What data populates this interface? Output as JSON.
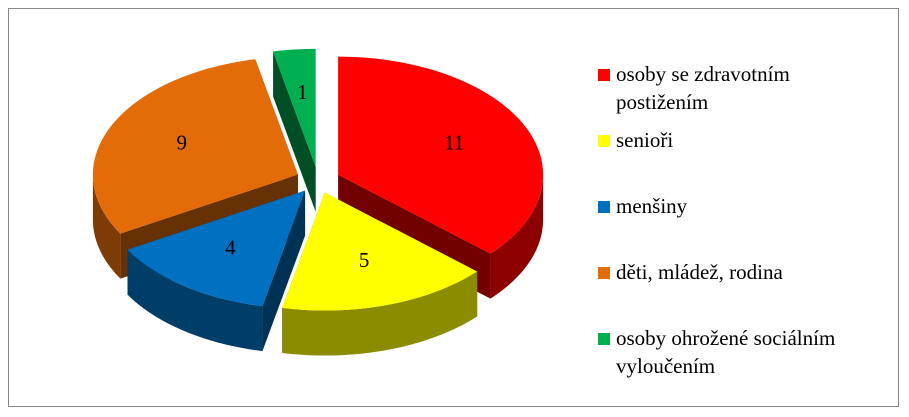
{
  "chart_data": {
    "type": "pie3d",
    "categories": [
      "osoby se zdravotním postižením",
      "senioři",
      "menšiny",
      "děti, mládež, rodina",
      "osoby ohrožené sociálním vyloučením"
    ],
    "values": [
      11,
      5,
      4,
      9,
      1
    ],
    "colors": [
      "#ff0000",
      "#ffff00",
      "#0070c0",
      "#e36c09",
      "#00b050"
    ],
    "legend": "right"
  }
}
